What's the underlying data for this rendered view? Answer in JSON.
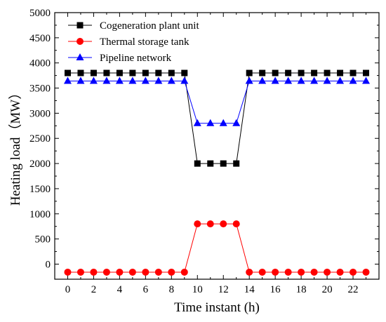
{
  "chart_data": {
    "type": "line",
    "title": "",
    "xlabel": "Time instant (h)",
    "ylabel": "Heating load（MW）",
    "x": [
      0,
      1,
      2,
      3,
      4,
      5,
      6,
      7,
      8,
      9,
      10,
      11,
      12,
      13,
      14,
      15,
      16,
      17,
      18,
      19,
      20,
      21,
      22,
      23
    ],
    "x_ticks": [
      0,
      2,
      4,
      6,
      8,
      10,
      12,
      14,
      16,
      18,
      20,
      22
    ],
    "x_tick_labels": [
      "0",
      "2",
      "4",
      "6",
      "8",
      "10",
      "12",
      "14",
      "16",
      "18",
      "20",
      "22"
    ],
    "xlim": [
      -1,
      24
    ],
    "y_ticks": [
      0,
      500,
      1000,
      1500,
      2000,
      2500,
      3000,
      3500,
      4000,
      4500,
      5000
    ],
    "y_tick_labels": [
      "0",
      "500",
      "1000",
      "1500",
      "2000",
      "2500",
      "3000",
      "3500",
      "4000",
      "4500",
      "5000"
    ],
    "ylim": [
      -300,
      5000
    ],
    "grid": false,
    "legend_position": "top-left",
    "series": [
      {
        "name": "Cogeneration plant unit",
        "color": "#000000",
        "marker": "square",
        "values": [
          3800,
          3800,
          3800,
          3800,
          3800,
          3800,
          3800,
          3800,
          3800,
          3800,
          2000,
          2000,
          2000,
          2000,
          3800,
          3800,
          3800,
          3800,
          3800,
          3800,
          3800,
          3800,
          3800,
          3800
        ]
      },
      {
        "name": "Thermal storage tank",
        "color": "#ff0000",
        "marker": "circle",
        "values": [
          -160,
          -160,
          -160,
          -160,
          -160,
          -160,
          -160,
          -160,
          -160,
          -160,
          800,
          800,
          800,
          800,
          -160,
          -160,
          -160,
          -160,
          -160,
          -160,
          -160,
          -160,
          -160,
          -160
        ]
      },
      {
        "name": "Pipeline network",
        "color": "#0000ff",
        "marker": "triangle",
        "values": [
          3640,
          3640,
          3640,
          3640,
          3640,
          3640,
          3640,
          3640,
          3640,
          3640,
          2800,
          2800,
          2800,
          2800,
          3640,
          3640,
          3640,
          3640,
          3640,
          3640,
          3640,
          3640,
          3640,
          3640
        ]
      }
    ]
  }
}
